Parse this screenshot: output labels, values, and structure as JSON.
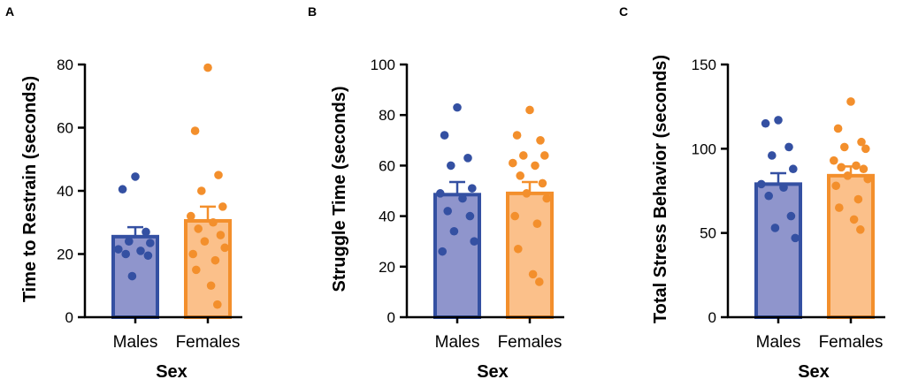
{
  "chart_data": [
    {
      "panel": "A",
      "type": "bar",
      "categories": [
        "Males",
        "Females"
      ],
      "values": [
        25.5,
        30.5
      ],
      "sem": [
        3.0,
        4.5
      ],
      "points": [
        [
          44.5,
          40.5,
          27,
          24,
          23.5,
          21.5,
          21,
          20,
          19.5,
          13
        ],
        [
          79,
          59,
          45,
          40,
          35,
          32,
          30,
          28,
          26,
          24,
          22,
          20,
          18,
          15,
          10,
          4
        ]
      ],
      "xlabel": "Sex",
      "ylabel": "Time to Restrain (seconds)",
      "ylim": [
        0,
        80
      ],
      "yticks": [
        0,
        20,
        40,
        60,
        80
      ],
      "ytick_labels": [
        "0",
        "20",
        "40",
        "60",
        "80"
      ]
    },
    {
      "panel": "B",
      "type": "bar",
      "categories": [
        "Males",
        "Females"
      ],
      "values": [
        48.5,
        49
      ],
      "sem": [
        5,
        4.5
      ],
      "points": [
        [
          83,
          72,
          63,
          60,
          51,
          49,
          47,
          42,
          40,
          34,
          30,
          26
        ],
        [
          82,
          72,
          70,
          64,
          64,
          61,
          60,
          56,
          53,
          49,
          47,
          40,
          37,
          27,
          17,
          14
        ]
      ],
      "xlabel": "Sex",
      "ylabel": "Struggle Time (seconds)",
      "ylim": [
        0,
        100
      ],
      "yticks": [
        0,
        20,
        40,
        60,
        80,
        100
      ],
      "ytick_labels": [
        "0",
        "20",
        "40",
        "60",
        "80",
        "100"
      ]
    },
    {
      "panel": "C",
      "type": "bar",
      "categories": [
        "Males",
        "Females"
      ],
      "values": [
        79,
        84
      ],
      "sem": [
        6.5,
        5.5
      ],
      "points": [
        [
          117,
          115,
          101,
          96,
          88,
          79,
          77,
          72,
          60,
          53,
          47
        ],
        [
          128,
          112,
          104,
          101,
          100,
          93,
          90,
          89,
          88,
          84,
          82,
          78,
          70,
          65,
          58,
          52
        ]
      ],
      "xlabel": "Sex",
      "ylabel": "Total Stress Behavior (seconds)",
      "ylim": [
        0,
        150
      ],
      "yticks": [
        0,
        50,
        100,
        150
      ],
      "ytick_labels": [
        "0",
        "50",
        "100",
        "150"
      ]
    }
  ],
  "colors": {
    "males_fill": "#8f95cc",
    "males_edge": "#3450a2",
    "males_point": "#3450a2",
    "females_fill": "#fbc08a",
    "females_edge": "#f38f2c",
    "females_point": "#f38f2c",
    "axis": "#000000"
  }
}
